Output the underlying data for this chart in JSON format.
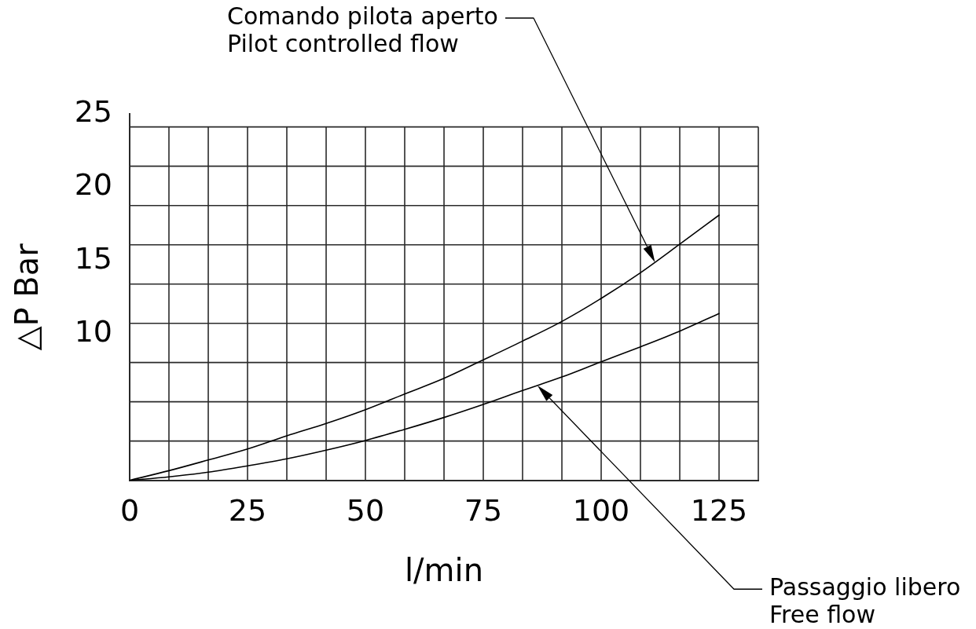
{
  "chart_data": {
    "type": "line",
    "xlabel": "l/min",
    "ylabel": "△P Bar",
    "x": [
      0,
      8.33,
      16.67,
      25,
      33.33,
      41.67,
      50,
      58.33,
      66.67,
      75,
      83.33,
      91.67,
      100,
      108.33,
      116.67,
      125
    ],
    "series": [
      {
        "color": "#000000",
        "values": [
          0,
          0.66,
          1.39,
          2.14,
          3.04,
          3.88,
          4.82,
          5.89,
          6.96,
          8.22,
          9.5,
          10.84,
          12.41,
          14.16,
          16.11,
          18.09
        ]
      },
      {
        "color": "#000000",
        "values": [
          0,
          0.24,
          0.56,
          0.99,
          1.47,
          2.06,
          2.72,
          3.48,
          4.29,
          5.18,
          6.13,
          7.05,
          8.09,
          9.11,
          10.18,
          11.38
        ]
      }
    ],
    "xlim": [
      0,
      133.33
    ],
    "xticks": [
      0,
      {
        "value": 8.33,
        "label": null
      },
      {
        "value": 16.67,
        "label": null
      },
      25,
      {
        "value": 33.33,
        "label": null
      },
      {
        "value": 41.67,
        "label": null
      },
      50,
      {
        "value": 58.33,
        "label": null
      },
      {
        "value": 66.67,
        "label": null
      },
      75,
      {
        "value": 83.33,
        "label": null
      },
      {
        "value": 91.67,
        "label": null
      },
      100,
      {
        "value": 108.33,
        "label": null
      },
      {
        "value": 116.67,
        "label": null
      },
      125,
      {
        "value": 133.33,
        "label": null
      }
    ],
    "ylim": [
      0,
      25
    ],
    "yticks": [
      {
        "value": 2.68,
        "label": null
      },
      {
        "value": 5.36,
        "label": null
      },
      {
        "value": 8.04,
        "label": null
      },
      10,
      {
        "value": 10.71,
        "label": null
      },
      {
        "value": 13.39,
        "label": null
      },
      15,
      {
        "value": 16.07,
        "label": null
      },
      {
        "value": 18.75,
        "label": null
      },
      20,
      {
        "value": 21.43,
        "label": null
      },
      {
        "value": 24.11,
        "label": null
      },
      25
    ],
    "grid": true,
    "marker": "none",
    "line_style": "solid",
    "annotations": [
      "Comando pilota aperto\nPilot controlled flow",
      "Passaggio libero\nFree flow"
    ]
  }
}
